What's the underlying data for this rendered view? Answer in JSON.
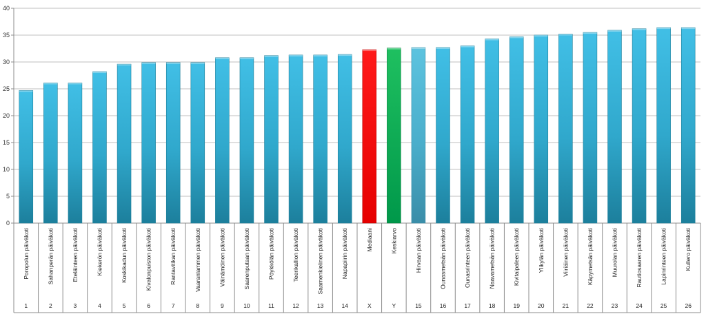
{
  "chart_data": {
    "type": "bar",
    "title": "",
    "xlabel": "",
    "ylabel": "",
    "ylim": [
      0,
      40
    ],
    "yticks": [
      0,
      5,
      10,
      15,
      20,
      25,
      30,
      35,
      40
    ],
    "grid": true,
    "legend": "none",
    "categories": [
      "Poropolun päiväkoti",
      "Sahanperän päiväkoti",
      "Eteläinteen päiväkoti",
      "Kiekerön päiväkoti",
      "Koskikadun päiväkoti",
      "Kivalonpuiston päiväkoti",
      "Rantavitikan päiväkoti",
      "Vaaranlammen päiväkoti",
      "Väinämöinen päiväkoti",
      "Saarenputaan päiväkoti",
      "Pöykkölän päiväkoti",
      "Teerikallion päiväkoti",
      "Saamenkielinen päiväkoti",
      "Napapiirin päiväkoti",
      "Mediaani",
      "Keskiarvo",
      "Hirvaan päiväkoti",
      "Ounasmetsän päiväkoti",
      "Ounasrinteen päiväkoti",
      "Naavametsän päiväkoti",
      "Kivitaipaleen päiväkoti",
      "Ylikylän päiväkoti",
      "Viiriäinen päiväkoti",
      "Käpymetsän päiväkoti",
      "Muurolan päiväkoti",
      "Rautiosaaren päiväkoti",
      "Lapinrinteen päiväkoti",
      "Kullero päiväkoti"
    ],
    "codes": [
      "1",
      "2",
      "3",
      "4",
      "5",
      "6",
      "7",
      "8",
      "9",
      "10",
      "11",
      "12",
      "13",
      "14",
      "X",
      "Y",
      "15",
      "16",
      "17",
      "18",
      "19",
      "20",
      "21",
      "22",
      "23",
      "24",
      "25",
      "26"
    ],
    "values": [
      24.7,
      26.1,
      26.1,
      28.2,
      29.6,
      29.9,
      29.9,
      29.9,
      30.8,
      30.8,
      31.2,
      31.3,
      31.3,
      31.4,
      32.3,
      32.6,
      32.7,
      32.7,
      33.0,
      34.3,
      34.7,
      35.0,
      35.2,
      35.5,
      35.9,
      36.2,
      36.4,
      36.4
    ],
    "colors": {
      "default": "#3ab4da",
      "Mediaani": "#ff0000",
      "Keskiarvo": "#00b050",
      "Hirvaan päiväkoti": "#4fb8d6"
    }
  }
}
